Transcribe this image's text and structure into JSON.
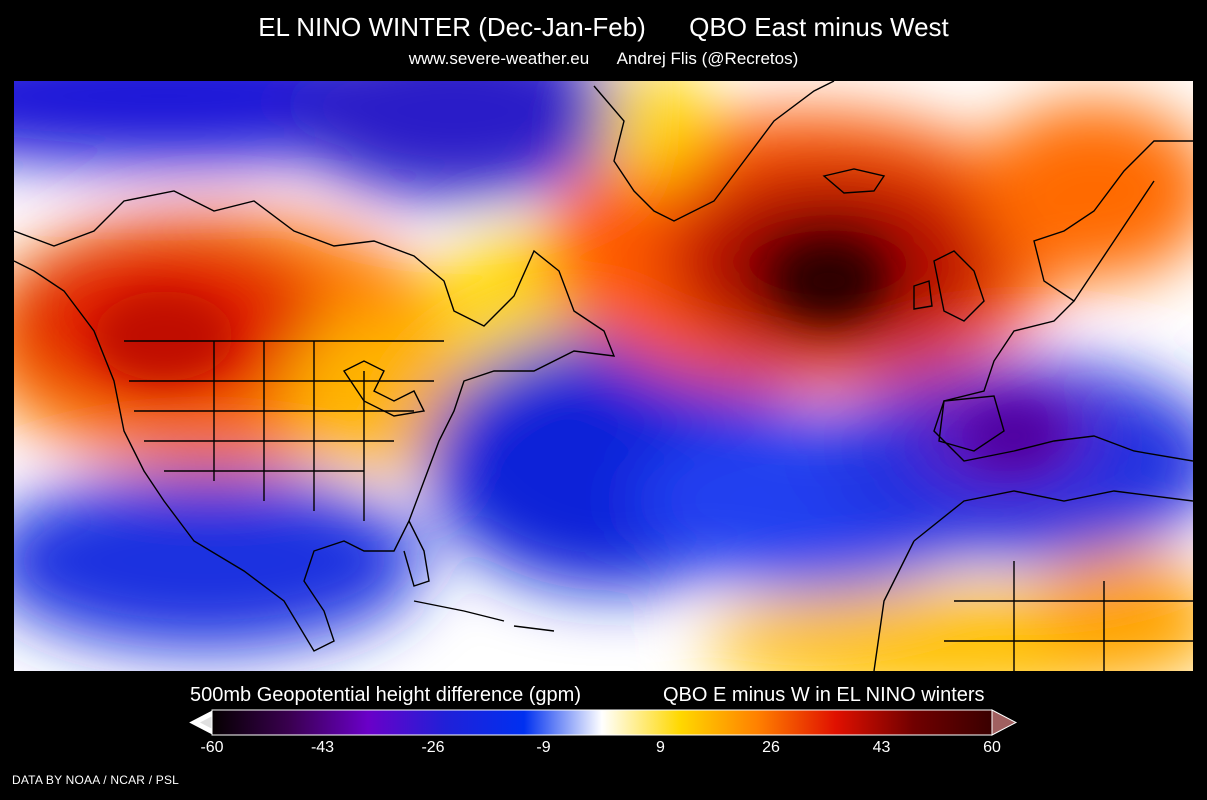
{
  "header": {
    "title": "EL NINO WINTER (Dec-Jan-Feb)      QBO East minus West",
    "subtitle": "www.severe-weather.eu      Andrej Flis (@Recretos)"
  },
  "colorbar": {
    "variable_label": "500mb Geopotential height difference (gpm)",
    "case_label": "QBO E minus W in EL NINO winters",
    "ticks": [
      "-60",
      "-43",
      "-26",
      "-9",
      "9",
      "26",
      "43",
      "60"
    ],
    "min": -60,
    "max": 60,
    "colors": [
      "#050000",
      "#3a0050",
      "#6a00c8",
      "#2020d8",
      "#0030f0",
      "#ffffff",
      "#ffd800",
      "#ff8000",
      "#e01000",
      "#700000",
      "#3a0000"
    ]
  },
  "credit": "DATA BY NOAA / NCAR / PSL"
}
